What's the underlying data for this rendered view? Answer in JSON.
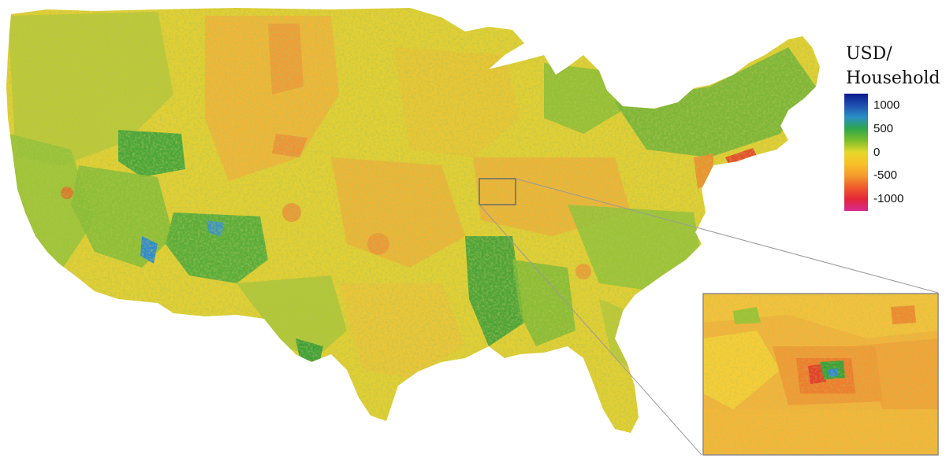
{
  "legend": {
    "title_line1": "USD/",
    "title_line2": "Household",
    "ticks": [
      "1000",
      "500",
      "0",
      "-500",
      "-1000"
    ],
    "tick_values": [
      1000,
      500,
      0,
      -500,
      -1000
    ],
    "range": [
      -1250,
      1250
    ],
    "color_stops": [
      {
        "value": 1250,
        "color": "#0b1a8c"
      },
      {
        "value": 1000,
        "color": "#1f4fb0"
      },
      {
        "value": 750,
        "color": "#2a8fc4"
      },
      {
        "value": 500,
        "color": "#2fa64a"
      },
      {
        "value": 250,
        "color": "#7cbf2a"
      },
      {
        "value": 0,
        "color": "#e6d72a"
      },
      {
        "value": -250,
        "color": "#f8c02a"
      },
      {
        "value": -500,
        "color": "#f59a2e"
      },
      {
        "value": -750,
        "color": "#ef5b2a"
      },
      {
        "value": -1000,
        "color": "#e3263a"
      },
      {
        "value": -1250,
        "color": "#d62a8f"
      }
    ]
  },
  "map": {
    "region": "contiguous United States",
    "inset": "zoomed county-level detail of highlighted metropolitan area"
  },
  "colors": {
    "land_base": "#e4d22e",
    "land_green": "#8cc23a",
    "land_dark_green": "#3e9f3a",
    "land_orange": "#f6a93a",
    "land_red": "#ea4a2a",
    "land_blue": "#2f8ad0",
    "connector": "#9a9a9a"
  }
}
